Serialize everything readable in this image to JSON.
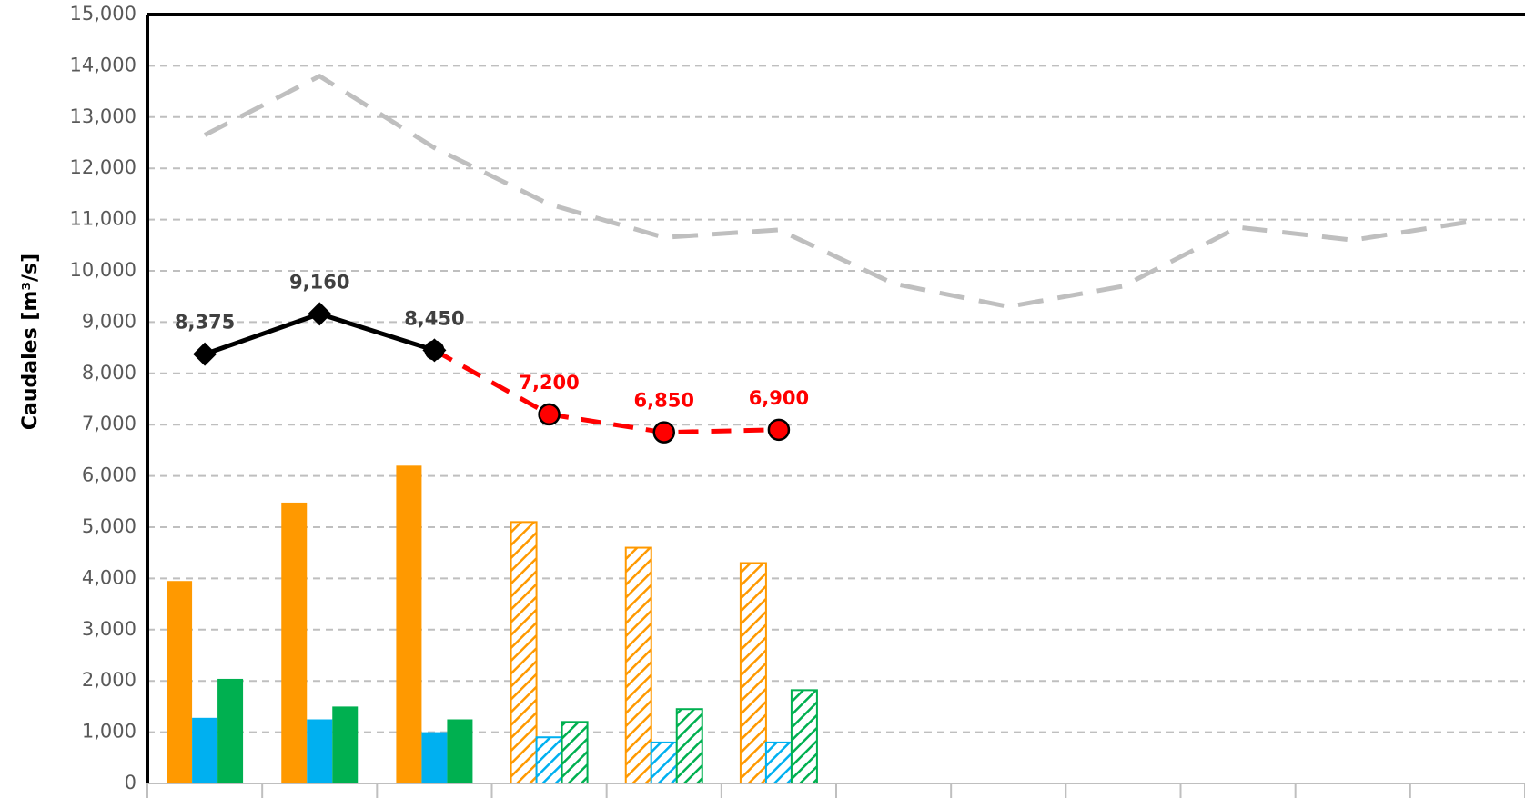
{
  "chart_data": {
    "type": "bar",
    "title": "",
    "ylabel": "Caudales [m³/s]",
    "xlabel": "",
    "ylim": [
      0,
      15000
    ],
    "yticks": [
      0,
      1000,
      2000,
      3000,
      4000,
      5000,
      6000,
      7000,
      8000,
      9000,
      10000,
      11000,
      12000,
      13000,
      14000,
      15000
    ],
    "ytick_labels": [
      "0",
      "1,000",
      "2,000",
      "3,000",
      "4,000",
      "5,000",
      "6,000",
      "7,000",
      "8,000",
      "9,000",
      "10,000",
      "11,000",
      "12,000",
      "13,000",
      "14,000",
      "15,000"
    ],
    "month_count": 12,
    "grid": true,
    "bar_series": [
      {
        "color": "#ff9900",
        "values": [
          3950,
          5480,
          6200,
          5100,
          4600,
          4300,
          null,
          null,
          null,
          null,
          null,
          null
        ],
        "hatched_from": 3
      },
      {
        "color": "#00b0f0",
        "values": [
          1280,
          1250,
          1000,
          900,
          800,
          800,
          null,
          null,
          null,
          null,
          null,
          null
        ],
        "hatched_from": 3
      },
      {
        "color": "#00b050",
        "values": [
          2040,
          1500,
          1250,
          1200,
          1450,
          1820,
          null,
          null,
          null,
          null,
          null,
          null
        ],
        "hatched_from": 3
      }
    ],
    "line_series": [
      {
        "style": "solid",
        "color": "#000000",
        "marker": "diamond",
        "x": [
          0,
          1,
          2
        ],
        "values": [
          8375,
          9160,
          8450
        ],
        "labels": [
          "8,375",
          "9,160",
          "8,450"
        ]
      },
      {
        "style": "dashed",
        "color": "#ff0000",
        "marker": "circle",
        "x": [
          2,
          3,
          4,
          5
        ],
        "values": [
          8450,
          7200,
          6850,
          6900
        ],
        "labels": [
          "",
          "7,200",
          "6,850",
          "6,900"
        ]
      },
      {
        "style": "dashed",
        "color": "#bfbfbf",
        "marker": "none",
        "x": [
          0,
          1,
          2,
          3,
          4,
          5,
          6,
          7,
          8,
          9,
          10,
          11
        ],
        "values": [
          12650,
          13800,
          12400,
          11300,
          10650,
          10800,
          9750,
          9300,
          9700,
          10850,
          10600,
          10950
        ],
        "labels": []
      }
    ]
  }
}
